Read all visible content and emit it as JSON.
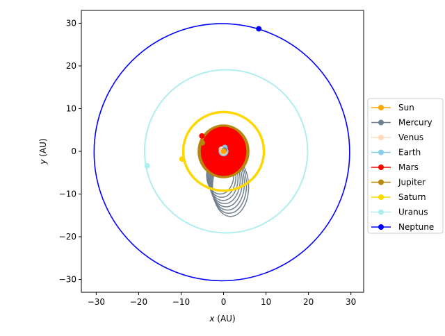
{
  "chart_data": {
    "type": "line",
    "xlabel_var": "x",
    "xlabel_unit": "(AU)",
    "ylabel_var": "y",
    "ylabel_unit": "(AU)",
    "xlim": [
      -33.5,
      33.0
    ],
    "ylim": [
      -33.0,
      33.0
    ],
    "xticks": [
      -30,
      -20,
      -10,
      0,
      10,
      20,
      30
    ],
    "yticks": [
      -30,
      -20,
      -10,
      0,
      10,
      20,
      30
    ],
    "grid": false,
    "legend_position": "center-right outside",
    "series": [
      {
        "name": "Sun",
        "color": "#FFA500",
        "orbit": {
          "cx": 0.0,
          "cy": 0.0,
          "rx": 0.0,
          "ry": 0.0
        },
        "point": [
          0.0,
          0.0
        ]
      },
      {
        "name": "Mercury",
        "color": "#708090",
        "orbit": {
          "cx": 0.0,
          "cy": 0.0,
          "rx": 0.4,
          "ry": 0.4
        },
        "point": [
          0.2,
          0.3
        ]
      },
      {
        "name": "Venus",
        "color": "#FFDAB9",
        "orbit": {
          "cx": 0.0,
          "cy": 0.0,
          "rx": 0.72,
          "ry": 0.72
        },
        "point": [
          -0.5,
          0.5
        ]
      },
      {
        "name": "Earth",
        "color": "#87CEEB",
        "orbit": {
          "cx": 0.0,
          "cy": 0.0,
          "rx": 1.0,
          "ry": 1.0
        },
        "point": [
          0.3,
          0.9
        ]
      },
      {
        "name": "Mars",
        "color": "#FF0000",
        "orbit": {
          "cx": 0.0,
          "cy": 0.0,
          "rx": 5.2,
          "ry": 5.6
        },
        "point": [
          -5.1,
          3.6
        ]
      },
      {
        "name": "Jupiter",
        "color": "#B8860B",
        "orbit": {
          "cx": 0.0,
          "cy": 0.0,
          "rx": 5.7,
          "ry": 5.9
        },
        "point": [
          -5.0,
          2.0
        ]
      },
      {
        "name": "Saturn",
        "color": "#FFD700",
        "orbit": {
          "cx": 0.0,
          "cy": 0.0,
          "rx": 9.5,
          "ry": 9.2
        },
        "point": [
          -9.8,
          -1.8
        ]
      },
      {
        "name": "Uranus",
        "color": "#AFEEEE",
        "orbit": {
          "cx": 0.6,
          "cy": 0.0,
          "rx": 19.2,
          "ry": 19.1
        },
        "point": [
          -18.0,
          -3.4
        ]
      },
      {
        "name": "Neptune",
        "color": "#0000FF",
        "orbit": {
          "cx": -0.4,
          "cy": -0.2,
          "rx": 30.1,
          "ry": 30.1
        },
        "point": [
          8.3,
          28.7
        ]
      }
    ]
  }
}
